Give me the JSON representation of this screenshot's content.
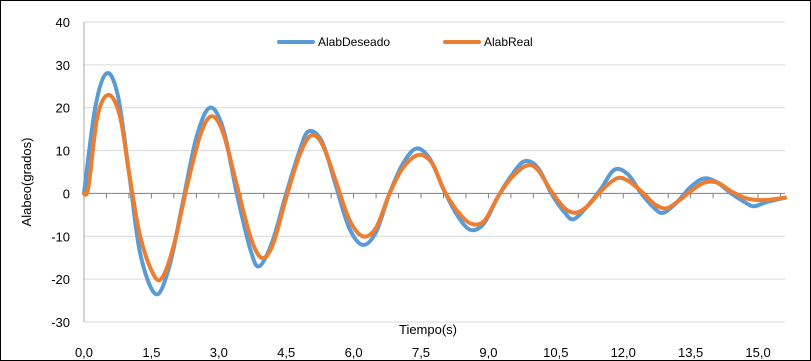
{
  "chart_data": {
    "type": "line",
    "title": "",
    "xlabel": "Tiempo(s)",
    "ylabel": "Alabeo(grados)",
    "xlim": [
      0,
      15.6
    ],
    "ylim": [
      -30,
      40
    ],
    "x_ticks": [
      "0,0",
      "1,5",
      "3,0",
      "4,5",
      "6,0",
      "7,5",
      "9,0",
      "10,5",
      "12,0",
      "13,5",
      "15,0"
    ],
    "x_tick_values": [
      0,
      1.5,
      3,
      4.5,
      6,
      7.5,
      9,
      10.5,
      12,
      13.5,
      15
    ],
    "y_ticks": [
      "40",
      "30",
      "20",
      "10",
      "0",
      "-10",
      "-20",
      "-30"
    ],
    "y_tick_values": [
      40,
      30,
      20,
      10,
      0,
      -10,
      -20,
      -30
    ],
    "grid": "horizontal",
    "legend_position": "top-center",
    "series": [
      {
        "name": "AlabDeseado",
        "color": "#5B9BD5",
        "points": [
          [
            0,
            0
          ],
          [
            0.25,
            20
          ],
          [
            0.5,
            28
          ],
          [
            0.75,
            23
          ],
          [
            1.0,
            5
          ],
          [
            1.25,
            -14
          ],
          [
            1.6,
            -23.5
          ],
          [
            1.9,
            -17
          ],
          [
            2.2,
            -2
          ],
          [
            2.5,
            13
          ],
          [
            2.8,
            20
          ],
          [
            3.1,
            15
          ],
          [
            3.4,
            0
          ],
          [
            3.7,
            -13
          ],
          [
            3.9,
            -17
          ],
          [
            4.2,
            -11
          ],
          [
            4.5,
            0
          ],
          [
            4.8,
            10
          ],
          [
            5.0,
            14.5
          ],
          [
            5.3,
            12
          ],
          [
            5.6,
            2
          ],
          [
            5.9,
            -8
          ],
          [
            6.2,
            -12
          ],
          [
            6.5,
            -9
          ],
          [
            6.8,
            0
          ],
          [
            7.1,
            7
          ],
          [
            7.4,
            10.5
          ],
          [
            7.7,
            8
          ],
          [
            8.0,
            1
          ],
          [
            8.3,
            -5
          ],
          [
            8.6,
            -8.5
          ],
          [
            8.9,
            -7
          ],
          [
            9.2,
            -1
          ],
          [
            9.5,
            4
          ],
          [
            9.8,
            7.5
          ],
          [
            10.1,
            6
          ],
          [
            10.4,
            0
          ],
          [
            10.7,
            -4.5
          ],
          [
            10.9,
            -6
          ],
          [
            11.2,
            -3
          ],
          [
            11.5,
            1
          ],
          [
            11.8,
            5.5
          ],
          [
            12.1,
            4.5
          ],
          [
            12.4,
            0
          ],
          [
            12.7,
            -3.5
          ],
          [
            12.9,
            -4.5
          ],
          [
            13.2,
            -2
          ],
          [
            13.5,
            1.5
          ],
          [
            13.8,
            3.5
          ],
          [
            14.1,
            2.5
          ],
          [
            14.4,
            0
          ],
          [
            14.7,
            -2
          ],
          [
            14.9,
            -3
          ],
          [
            15.2,
            -2
          ],
          [
            15.6,
            -1
          ]
        ]
      },
      {
        "name": "AlabReal",
        "color": "#ED7D31",
        "points": [
          [
            0,
            0
          ],
          [
            0.1,
            1.5
          ],
          [
            0.3,
            18
          ],
          [
            0.55,
            23
          ],
          [
            0.8,
            18
          ],
          [
            1.0,
            5
          ],
          [
            1.25,
            -10
          ],
          [
            1.55,
            -19
          ],
          [
            1.75,
            -19.5
          ],
          [
            2.0,
            -12
          ],
          [
            2.3,
            2
          ],
          [
            2.6,
            14
          ],
          [
            2.85,
            18
          ],
          [
            3.1,
            14
          ],
          [
            3.4,
            2
          ],
          [
            3.7,
            -10
          ],
          [
            3.95,
            -15
          ],
          [
            4.2,
            -12
          ],
          [
            4.5,
            -1
          ],
          [
            4.8,
            9
          ],
          [
            5.05,
            13.5
          ],
          [
            5.3,
            11.5
          ],
          [
            5.6,
            3
          ],
          [
            5.9,
            -6
          ],
          [
            6.2,
            -10
          ],
          [
            6.5,
            -8
          ],
          [
            6.8,
            0
          ],
          [
            7.1,
            6
          ],
          [
            7.45,
            9
          ],
          [
            7.75,
            7
          ],
          [
            8.0,
            1
          ],
          [
            8.3,
            -4
          ],
          [
            8.6,
            -7
          ],
          [
            8.9,
            -6.5
          ],
          [
            9.2,
            -1
          ],
          [
            9.5,
            3.5
          ],
          [
            9.85,
            6.5
          ],
          [
            10.1,
            5.5
          ],
          [
            10.4,
            0.5
          ],
          [
            10.7,
            -3.5
          ],
          [
            10.95,
            -4.5
          ],
          [
            11.2,
            -3
          ],
          [
            11.5,
            0.5
          ],
          [
            11.85,
            3.5
          ],
          [
            12.1,
            3
          ],
          [
            12.4,
            0.5
          ],
          [
            12.7,
            -2.5
          ],
          [
            12.95,
            -3.5
          ],
          [
            13.2,
            -2
          ],
          [
            13.5,
            0.5
          ],
          [
            13.8,
            2.5
          ],
          [
            14.1,
            2.5
          ],
          [
            14.4,
            0.5
          ],
          [
            14.7,
            -1
          ],
          [
            14.95,
            -1.5
          ],
          [
            15.2,
            -1.5
          ],
          [
            15.6,
            -1
          ]
        ]
      }
    ]
  }
}
